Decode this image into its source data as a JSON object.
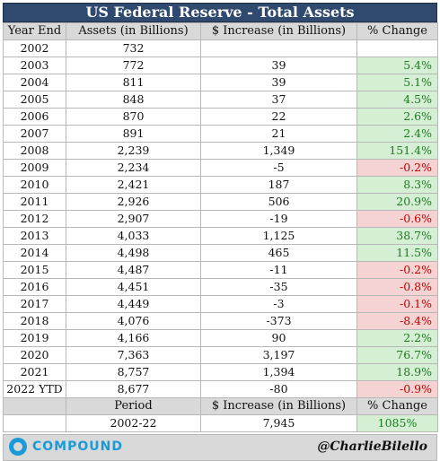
{
  "title": "US Federal Reserve - Total Assets",
  "headers": [
    "Year End",
    "Assets (in Billions)",
    "$ Increase (in Billions)",
    "% Change"
  ],
  "rows": [
    {
      "year": "2002",
      "assets": "732",
      "increase": "",
      "change": "",
      "sign": "blank"
    },
    {
      "year": "2003",
      "assets": "772",
      "increase": "39",
      "change": "5.4%",
      "sign": "pos"
    },
    {
      "year": "2004",
      "assets": "811",
      "increase": "39",
      "change": "5.1%",
      "sign": "pos"
    },
    {
      "year": "2005",
      "assets": "848",
      "increase": "37",
      "change": "4.5%",
      "sign": "pos"
    },
    {
      "year": "2006",
      "assets": "870",
      "increase": "22",
      "change": "2.6%",
      "sign": "pos"
    },
    {
      "year": "2007",
      "assets": "891",
      "increase": "21",
      "change": "2.4%",
      "sign": "pos"
    },
    {
      "year": "2008",
      "assets": "2,239",
      "increase": "1,349",
      "change": "151.4%",
      "sign": "pos"
    },
    {
      "year": "2009",
      "assets": "2,234",
      "increase": "-5",
      "change": "-0.2%",
      "sign": "neg"
    },
    {
      "year": "2010",
      "assets": "2,421",
      "increase": "187",
      "change": "8.3%",
      "sign": "pos"
    },
    {
      "year": "2011",
      "assets": "2,926",
      "increase": "506",
      "change": "20.9%",
      "sign": "pos"
    },
    {
      "year": "2012",
      "assets": "2,907",
      "increase": "-19",
      "change": "-0.6%",
      "sign": "neg"
    },
    {
      "year": "2013",
      "assets": "4,033",
      "increase": "1,125",
      "change": "38.7%",
      "sign": "pos"
    },
    {
      "year": "2014",
      "assets": "4,498",
      "increase": "465",
      "change": "11.5%",
      "sign": "pos"
    },
    {
      "year": "2015",
      "assets": "4,487",
      "increase": "-11",
      "change": "-0.2%",
      "sign": "neg"
    },
    {
      "year": "2016",
      "assets": "4,451",
      "increase": "-35",
      "change": "-0.8%",
      "sign": "neg"
    },
    {
      "year": "2017",
      "assets": "4,449",
      "increase": "-3",
      "change": "-0.1%",
      "sign": "neg"
    },
    {
      "year": "2018",
      "assets": "4,076",
      "increase": "-373",
      "change": "-8.4%",
      "sign": "neg"
    },
    {
      "year": "2019",
      "assets": "4,166",
      "increase": "90",
      "change": "2.2%",
      "sign": "pos"
    },
    {
      "year": "2020",
      "assets": "7,363",
      "increase": "3,197",
      "change": "76.7%",
      "sign": "pos"
    },
    {
      "year": "2021",
      "assets": "8,757",
      "increase": "1,394",
      "change": "18.9%",
      "sign": "pos"
    },
    {
      "year": "2022 YTD",
      "assets": "8,677",
      "increase": "-80",
      "change": "-0.9%",
      "sign": "neg"
    }
  ],
  "summary": {
    "headers": [
      "",
      "Period",
      "$ Increase (in Billions)",
      "% Change"
    ],
    "row": [
      "",
      "2002-22",
      "7,945",
      "1085%"
    ]
  },
  "footer": {
    "logo_text": "COMPOUND",
    "handle": "@CharlieBilello"
  },
  "colors": {
    "title_bg": "#2f4a6e",
    "positive_bg": "#d4efd4",
    "positive_text": "#1f7a1f",
    "negative_bg": "#f6d3d3",
    "negative_text": "#c00000",
    "brand": "#1a9bd7"
  }
}
